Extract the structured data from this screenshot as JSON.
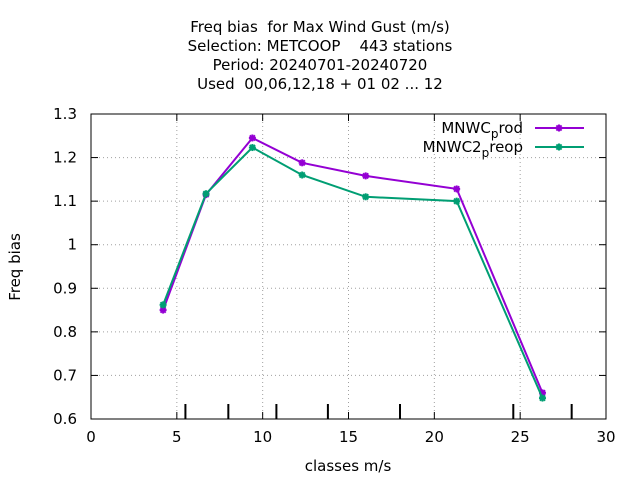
{
  "chart_data": {
    "type": "line",
    "title_lines": [
      "Freq bias  for Max Wind Gust (m/s)",
      "Selection: METCOOP    443 stations",
      "Period: 20240701-20240720",
      "Used  00,06,12,18 + 01 02 ... 12"
    ],
    "xlabel": "classes m/s",
    "ylabel": "Freq bias",
    "xlim": [
      0,
      30
    ],
    "ylim": [
      0.6,
      1.3
    ],
    "xticks": [
      "0",
      "5",
      "10",
      "15",
      "20",
      "25",
      "30"
    ],
    "yticks": [
      "0.6",
      "0.7",
      "0.8",
      "0.9",
      "1",
      "1.1",
      "1.2",
      "1.3"
    ],
    "grid": true,
    "legend_position": "top-right",
    "class_marks": [
      5.5,
      8,
      10.8,
      13.8,
      18,
      24.6,
      28
    ],
    "series": [
      {
        "name": "MNWC_prod",
        "legend_main": "MNWC",
        "legend_sub": "p",
        "legend_rest": "rod",
        "color": "#9400d3",
        "x": [
          4.2,
          6.7,
          9.4,
          12.3,
          16.0,
          21.3,
          26.3
        ],
        "y": [
          0.85,
          1.115,
          1.245,
          1.188,
          1.158,
          1.128,
          0.66
        ]
      },
      {
        "name": "MNWC2_preop",
        "legend_main": "MNWC2",
        "legend_sub": "p",
        "legend_rest": "reop",
        "color": "#009e73",
        "x": [
          4.2,
          6.7,
          9.4,
          12.3,
          16.0,
          21.3,
          26.3
        ],
        "y": [
          0.862,
          1.117,
          1.223,
          1.16,
          1.11,
          1.1,
          0.648
        ]
      }
    ]
  }
}
